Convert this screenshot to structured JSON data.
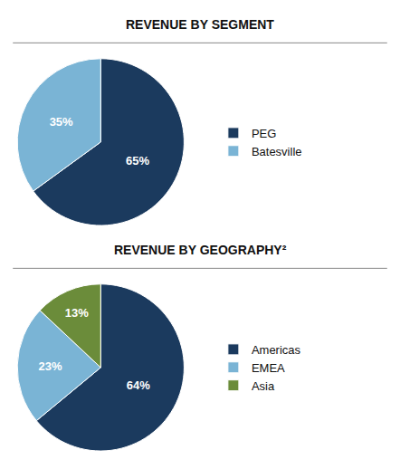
{
  "chart_data": [
    {
      "type": "pie",
      "title": "REVENUE BY SEGMENT",
      "categories": [
        "PEG",
        "Batesville"
      ],
      "values": [
        65,
        35
      ],
      "value_labels": [
        "65%",
        "35%"
      ],
      "colors": [
        "#1b3a5e",
        "#7ab4d5"
      ],
      "data_labels": true,
      "legend": "right"
    },
    {
      "type": "pie",
      "title": "REVENUE BY GEOGRAPHY²",
      "categories": [
        "Americas",
        "EMEA",
        "Asia"
      ],
      "values": [
        64,
        23,
        13
      ],
      "value_labels": [
        "64%",
        "23%",
        "13%"
      ],
      "colors": [
        "#1b3a5e",
        "#7ab4d5",
        "#6b8c3a"
      ],
      "data_labels": true,
      "legend": "right"
    }
  ]
}
